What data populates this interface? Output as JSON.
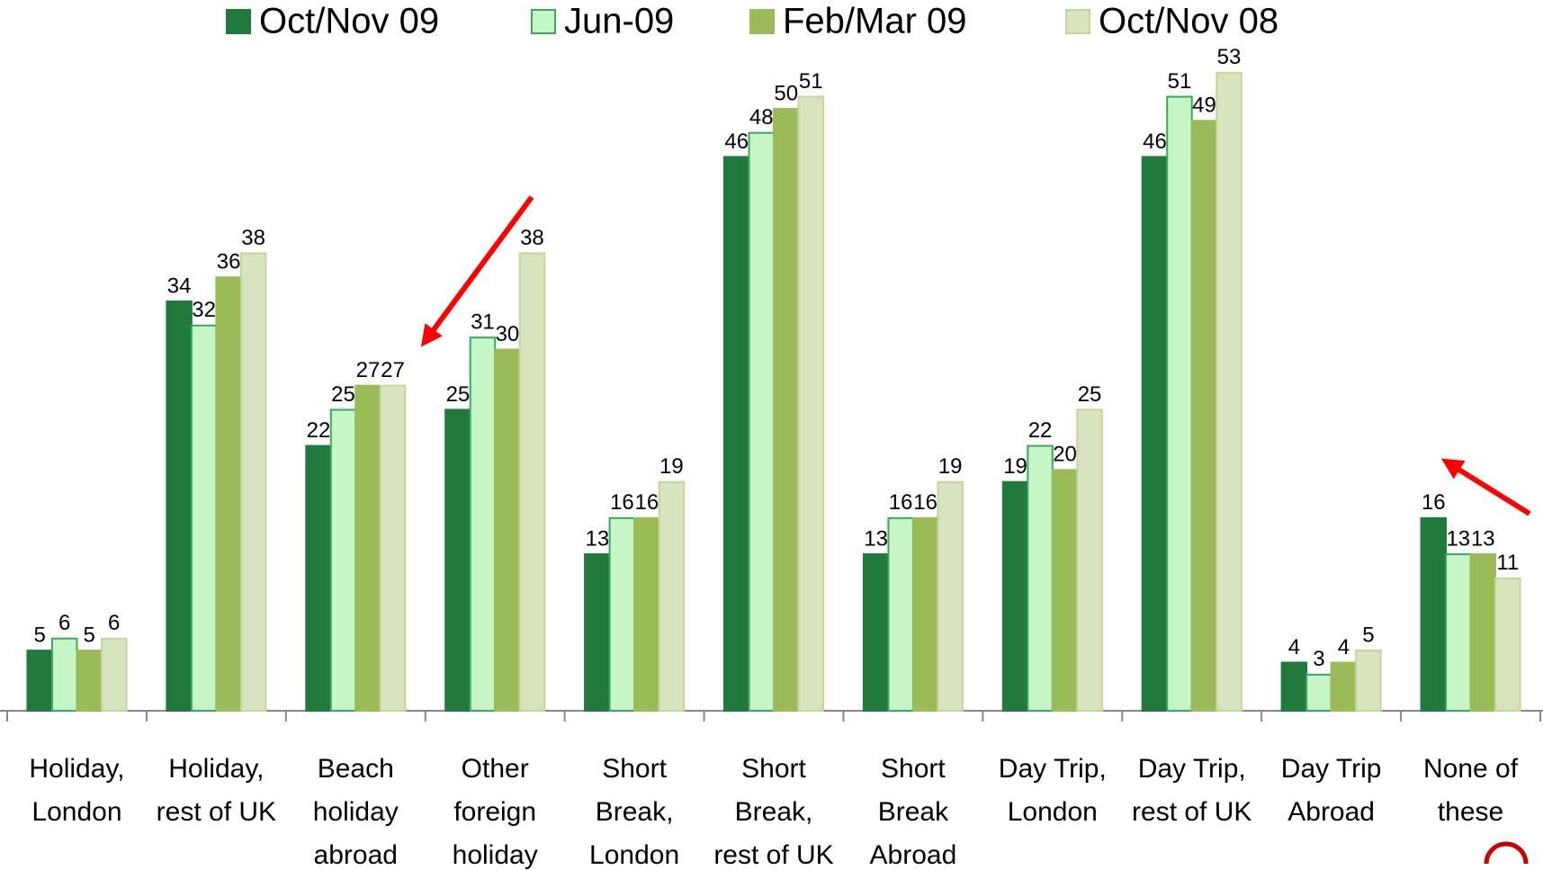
{
  "chart_data": {
    "type": "bar",
    "categories": [
      [
        "Holiday,",
        "London"
      ],
      [
        "Holiday,",
        "rest of UK"
      ],
      [
        "Beach",
        "holiday",
        "abroad"
      ],
      [
        "Other",
        "foreign",
        "holiday"
      ],
      [
        "Short",
        "Break,",
        "London"
      ],
      [
        "Short",
        "Break,",
        "rest of UK"
      ],
      [
        "Short",
        "Break",
        "Abroad"
      ],
      [
        "Day Trip,",
        "London"
      ],
      [
        "Day Trip,",
        "rest of UK"
      ],
      [
        "Day Trip",
        "Abroad"
      ],
      [
        "None of",
        "these"
      ]
    ],
    "series": [
      {
        "name": "Oct/Nov 09",
        "color": "#217a3c",
        "values": [
          5,
          34,
          22,
          25,
          13,
          46,
          13,
          19,
          46,
          4,
          16
        ]
      },
      {
        "name": "Jun-09",
        "color": "#c6f5c6",
        "values": [
          6,
          32,
          25,
          31,
          16,
          48,
          16,
          22,
          51,
          3,
          13
        ]
      },
      {
        "name": "Feb/Mar 09",
        "color": "#9bbb59",
        "values": [
          5,
          36,
          27,
          30,
          16,
          50,
          16,
          20,
          49,
          4,
          13
        ]
      },
      {
        "name": "Oct/Nov 08",
        "color": "#d7e4bd",
        "values": [
          6,
          38,
          27,
          38,
          19,
          51,
          19,
          25,
          53,
          5,
          11
        ]
      }
    ],
    "ylim": [
      0,
      55
    ],
    "legend": "top"
  }
}
